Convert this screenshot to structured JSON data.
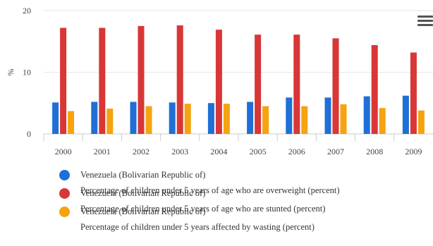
{
  "menu_icon": "hamburger-menu-icon",
  "chart_data": {
    "type": "bar",
    "ylabel": "%",
    "ylim": [
      0,
      20
    ],
    "yticks": [
      "0",
      "10",
      "20"
    ],
    "grid": true,
    "legend_position": "bottom",
    "categories": [
      "2000",
      "2001",
      "2002",
      "2003",
      "2004",
      "2005",
      "2006",
      "2007",
      "2008",
      "2009"
    ],
    "series": [
      {
        "name": "Venezuela (Bolivarian Republic of)",
        "description": "Percentage of children under 5 years of age who are overweight (percent)",
        "color": "#1f6fd6",
        "values": [
          5.1,
          5.2,
          5.2,
          5.1,
          5.0,
          5.2,
          5.9,
          5.9,
          6.1,
          6.2
        ]
      },
      {
        "name": "Venezuela (Bolivarian Republic of)",
        "description": "Percentage of children under 5 years of age who are stunted (percent)",
        "color": "#d93636",
        "values": [
          17.2,
          17.2,
          17.5,
          17.6,
          16.9,
          16.1,
          16.1,
          15.5,
          14.4,
          13.2
        ]
      },
      {
        "name": "Venezuela (Bolivarian Republic of)",
        "description": "Percentage of children under 5 years affected by wasting (percent)",
        "color": "#f5a30f",
        "values": [
          3.7,
          4.1,
          4.5,
          4.9,
          4.9,
          4.5,
          4.5,
          4.8,
          4.2,
          3.8
        ]
      }
    ]
  }
}
